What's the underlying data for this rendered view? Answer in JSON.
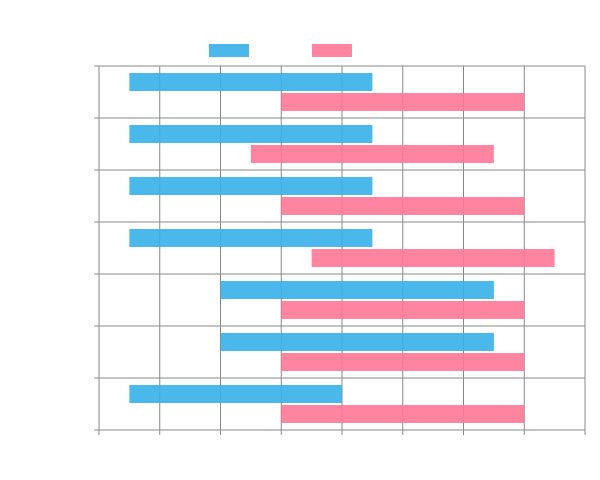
{
  "chart_data": {
    "type": "bar",
    "orientation": "horizontal",
    "floating": true,
    "title": "",
    "xlabel": "",
    "ylabel": "",
    "categories": [
      "",
      "",
      "",
      "",
      "",
      "",
      ""
    ],
    "xlim": [
      0,
      8
    ],
    "grid": true,
    "legend": {
      "placement": "top-center"
    },
    "series": [
      {
        "color": "#36b0e8",
        "ranges": [
          [
            0.5,
            4.5
          ],
          [
            0.5,
            4.5
          ],
          [
            0.5,
            4.5
          ],
          [
            0.5,
            4.5
          ],
          [
            2,
            6.5
          ],
          [
            2,
            6.5
          ],
          [
            0.5,
            4
          ]
        ]
      },
      {
        "color": "#ff7795",
        "ranges": [
          [
            3,
            7
          ],
          [
            2.5,
            6.5
          ],
          [
            3,
            7
          ],
          [
            3.5,
            7.5
          ],
          [
            3,
            7
          ],
          [
            3,
            7
          ],
          [
            3,
            7
          ]
        ]
      }
    ]
  }
}
